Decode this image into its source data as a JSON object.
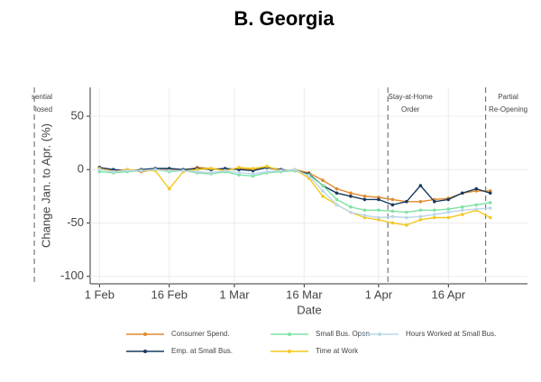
{
  "chart_data": {
    "type": "line",
    "title": "B. Georgia",
    "xlabel": "Date",
    "ylabel": "Change Jan. to Apr. (%)",
    "x": [
      "1 Feb",
      "4 Feb",
      "7 Feb",
      "10 Feb",
      "13 Feb",
      "16 Feb",
      "19 Feb",
      "22 Feb",
      "25 Feb",
      "28 Feb",
      "2 Mar",
      "5 Mar",
      "8 Mar",
      "11 Mar",
      "14 Mar",
      "17 Mar",
      "20 Mar",
      "23 Mar",
      "26 Mar",
      "29 Mar",
      "1 Apr",
      "4 Apr",
      "7 Apr",
      "10 Apr",
      "13 Apr",
      "16 Apr",
      "19 Apr",
      "22 Apr",
      "25 Apr"
    ],
    "series": [
      {
        "name": "Consumer Spend.",
        "color": "#e08a2c",
        "values": [
          1,
          -1,
          0,
          -2,
          0,
          0,
          -1,
          2,
          1,
          0,
          1,
          0,
          2,
          -1,
          0,
          -3,
          -10,
          -18,
          -22,
          -25,
          -26,
          -28,
          -30,
          -30,
          -28,
          -27,
          -22,
          -20,
          -20
        ]
      },
      {
        "name": "Emp. at Small Bus.",
        "color": "#173a5e",
        "values": [
          2,
          0,
          -1,
          0,
          1,
          1,
          0,
          1,
          0,
          1,
          0,
          -1,
          2,
          0,
          -1,
          -4,
          -15,
          -22,
          -25,
          -28,
          -28,
          -33,
          -30,
          -15,
          -30,
          -28,
          -22,
          -18,
          -22
        ]
      },
      {
        "name": "Small Bus. Open",
        "color": "#7fe3a3",
        "values": [
          -2,
          -3,
          -2,
          -1,
          0,
          -2,
          -1,
          -3,
          -4,
          -2,
          -5,
          -6,
          -3,
          -2,
          -1,
          -5,
          -15,
          -28,
          -35,
          -38,
          -38,
          -39,
          -40,
          -38,
          -38,
          -37,
          -35,
          -33,
          -31
        ]
      },
      {
        "name": "Time at Work",
        "color": "#f4c81e",
        "values": [
          1,
          -2,
          0,
          -1,
          -1,
          -18,
          -2,
          0,
          1,
          -1,
          2,
          1,
          3,
          -1,
          0,
          -8,
          -25,
          -33,
          -40,
          -45,
          -47,
          -50,
          -52,
          -47,
          -45,
          -45,
          -42,
          -38,
          -45
        ]
      },
      {
        "name": "Hours Worked at Small Bus.",
        "color": "#b9d7ea",
        "values": [
          0,
          -2,
          -1,
          -1,
          0,
          -1,
          -1,
          -2,
          -3,
          -1,
          -3,
          -4,
          -2,
          -1,
          0,
          -6,
          -20,
          -33,
          -40,
          -43,
          -45,
          -44,
          -45,
          -44,
          -42,
          -40,
          -38,
          -37,
          -36
        ]
      }
    ],
    "xlim": [
      "30 Jan",
      "3 May"
    ],
    "xticks": [
      "1 Feb",
      "16 Feb",
      "1 Mar",
      "16 Mar",
      "1 Apr",
      "16 Apr"
    ],
    "ylim": [
      -107,
      77
    ],
    "yticks": [
      50,
      0,
      -50,
      -100
    ],
    "grid": true,
    "annotations": [
      {
        "x": "18 Jan",
        "lines": [
          "sential",
          "losed"
        ]
      },
      {
        "x": "3 Apr",
        "lines": [
          "Stay-at-Home",
          "Order"
        ]
      },
      {
        "x": "24 Apr",
        "lines": [
          "Partial",
          "Re-Opening"
        ]
      }
    ]
  }
}
